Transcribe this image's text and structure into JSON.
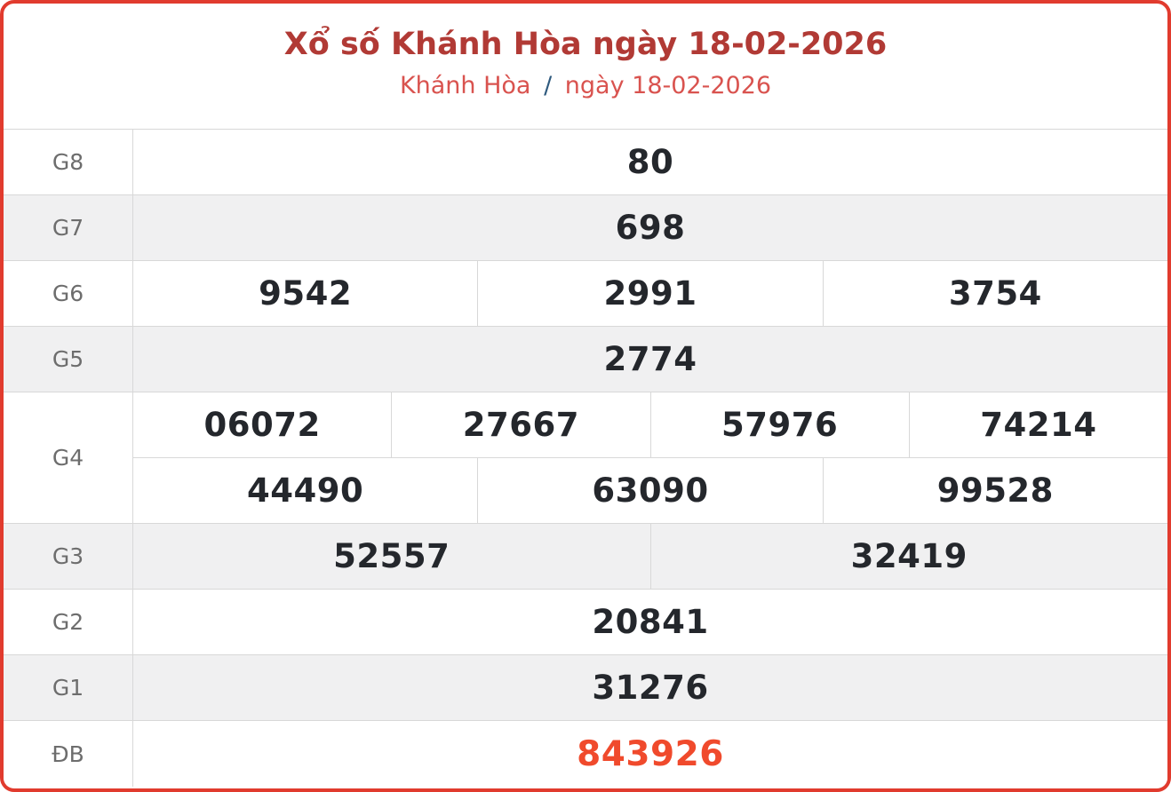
{
  "header": {
    "title": "Xổ số Khánh Hòa ngày 18-02-2026",
    "subtitle_region": "Khánh Hòa",
    "subtitle_separator": "/",
    "subtitle_date": "ngày 18-02-2026"
  },
  "results": {
    "rows": [
      {
        "label": "G8",
        "cells": [
          "80"
        ]
      },
      {
        "label": "G7",
        "cells": [
          "698"
        ]
      },
      {
        "label": "G6",
        "cells": [
          "9542",
          "2991",
          "3754"
        ]
      },
      {
        "label": "G5",
        "cells": [
          "2774"
        ]
      },
      {
        "label": "G4",
        "lines": [
          [
            "06072",
            "27667",
            "57976",
            "74214"
          ],
          [
            "44490",
            "63090",
            "99528"
          ]
        ]
      },
      {
        "label": "G3",
        "cells": [
          "52557",
          "32419"
        ]
      },
      {
        "label": "G2",
        "cells": [
          "20841"
        ]
      },
      {
        "label": "G1",
        "cells": [
          "31276"
        ]
      },
      {
        "label": "ĐB",
        "cells": [
          "843926"
        ]
      }
    ]
  },
  "colors": {
    "card_border_red": "#e13b2e",
    "title_red": "#b13a35",
    "subtitle_red": "#d9534f",
    "separator_blue": "#2f5a7e",
    "special_prize_orange": "#f04a2c",
    "value_text": "#24272c",
    "label_text": "#6d6d6d",
    "row_alt_background": "#f0f0f1",
    "grid_line": "#d8d8d8"
  }
}
